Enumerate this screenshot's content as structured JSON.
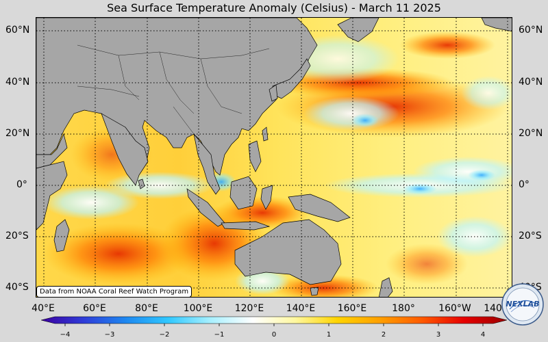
{
  "title": "Sea Surface Temperature Anomaly (Celsius) - March 11 2025",
  "lat_labels": [
    "60°N",
    "40°N",
    "20°N",
    "0°",
    "20°S",
    "40°S"
  ],
  "lon_labels": [
    "40°E",
    "60°E",
    "80°E",
    "100°E",
    "120°E",
    "140°E",
    "160°E",
    "180°",
    "160°W",
    "140°W"
  ],
  "colorbar": {
    "ticks": [
      "−4",
      "−3",
      "−2",
      "−1",
      "0",
      "1",
      "2",
      "3",
      "4"
    ],
    "min": -4,
    "max": 4,
    "stops": [
      "#3b00a0",
      "#2f3cd8",
      "#1e88f0",
      "#30c8ff",
      "#a8f0ff",
      "#ffffff",
      "#fff8a0",
      "#ffd400",
      "#ffa000",
      "#ff5a00",
      "#e60000",
      "#9b0000"
    ]
  },
  "attribution": "Data from NOAA Coral Reef Watch Program",
  "logo_text": "NEXLAB",
  "colors": {
    "land": "#a6a6a6",
    "background": "#d9d9d9",
    "warm": "#ffb400",
    "hot": "#e83000",
    "cool": "#9ff0ff"
  }
}
